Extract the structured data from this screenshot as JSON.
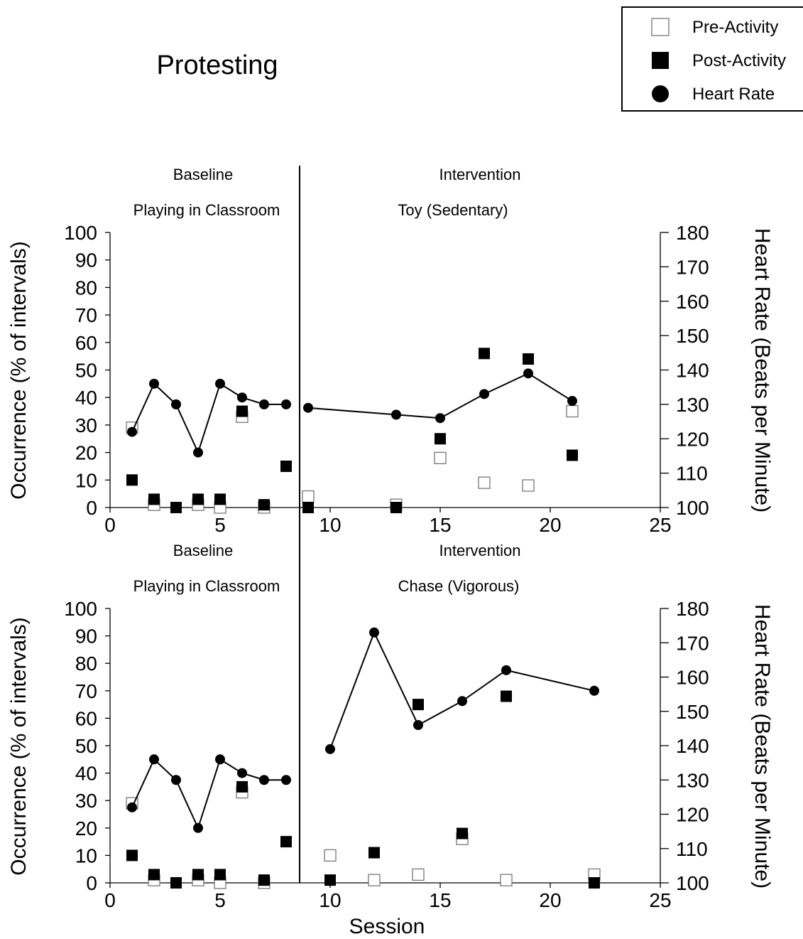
{
  "title": "Protesting",
  "legend": {
    "entries": [
      {
        "label": "Pre-Activity",
        "marker": "open-square"
      },
      {
        "label": "Post-Activity",
        "marker": "filled-square"
      },
      {
        "label": "Heart Rate",
        "marker": "filled-circle"
      }
    ]
  },
  "colors": {
    "ink": "#000000",
    "background": "#ffffff"
  },
  "chart_data": [
    {
      "type": "scatter",
      "phase_labels": {
        "left": "Baseline",
        "right": "Intervention"
      },
      "condition_labels": {
        "left": "Playing in Classroom",
        "right": "Toy (Sedentary)"
      },
      "phase_change_after_session": 8.5,
      "xlabel": "",
      "ylabel": "Occurrence (% of intervals)",
      "y2label": "Heart Rate (Beats per Minute)",
      "xlim": [
        0,
        25
      ],
      "ylim": [
        0,
        100
      ],
      "y2lim": [
        100,
        180
      ],
      "xticks": [
        "0",
        "5",
        "10",
        "15",
        "20",
        "25"
      ],
      "yticks": [
        "0",
        "10",
        "20",
        "30",
        "40",
        "50",
        "60",
        "70",
        "80",
        "90",
        "100"
      ],
      "y2ticks": [
        "100",
        "110",
        "120",
        "130",
        "140",
        "150",
        "160",
        "170",
        "180"
      ],
      "series": [
        {
          "name": "Pre-Activity",
          "axis": "left",
          "points": [
            [
              1,
              29
            ],
            [
              2,
              1
            ],
            [
              4,
              1
            ],
            [
              5,
              0
            ],
            [
              6,
              33
            ],
            [
              7,
              0
            ],
            [
              9,
              4
            ],
            [
              13,
              1
            ],
            [
              15,
              18
            ],
            [
              17,
              9
            ],
            [
              19,
              8
            ],
            [
              21,
              35
            ]
          ]
        },
        {
          "name": "Post-Activity",
          "axis": "left",
          "points": [
            [
              1,
              10
            ],
            [
              2,
              3
            ],
            [
              3,
              0
            ],
            [
              4,
              3
            ],
            [
              5,
              3
            ],
            [
              6,
              35
            ],
            [
              7,
              1
            ],
            [
              8,
              15
            ],
            [
              9,
              0
            ],
            [
              13,
              0
            ],
            [
              15,
              25
            ],
            [
              17,
              56
            ],
            [
              19,
              54
            ],
            [
              21,
              19
            ]
          ]
        },
        {
          "name": "Heart Rate",
          "axis": "right",
          "segments": [
            [
              [
                1,
                122
              ],
              [
                2,
                136
              ],
              [
                3,
                130
              ],
              [
                4,
                116
              ],
              [
                5,
                136
              ],
              [
                6,
                132
              ],
              [
                7,
                130
              ],
              [
                8,
                130
              ]
            ],
            [
              [
                9,
                129
              ],
              [
                13,
                127
              ],
              [
                15,
                126
              ],
              [
                17,
                133
              ],
              [
                19,
                139
              ],
              [
                21,
                131
              ]
            ]
          ]
        }
      ]
    },
    {
      "type": "scatter",
      "phase_labels": {
        "left": "Baseline",
        "right": "Intervention"
      },
      "condition_labels": {
        "left": "Playing in Classroom",
        "right": "Chase (Vigorous)"
      },
      "phase_change_after_session": 8.5,
      "xlabel": "Session",
      "ylabel": "Occurrence (% of intervals)",
      "y2label": "Heart Rate (Beats per Minute)",
      "xlim": [
        0,
        25
      ],
      "ylim": [
        0,
        100
      ],
      "y2lim": [
        100,
        180
      ],
      "xticks": [
        "0",
        "5",
        "10",
        "15",
        "20",
        "25"
      ],
      "yticks": [
        "0",
        "10",
        "20",
        "30",
        "40",
        "50",
        "60",
        "70",
        "80",
        "90",
        "100"
      ],
      "y2ticks": [
        "100",
        "110",
        "120",
        "130",
        "140",
        "150",
        "160",
        "170",
        "180"
      ],
      "series": [
        {
          "name": "Pre-Activity",
          "axis": "left",
          "points": [
            [
              1,
              29
            ],
            [
              2,
              1
            ],
            [
              4,
              1
            ],
            [
              5,
              0
            ],
            [
              6,
              33
            ],
            [
              7,
              0
            ],
            [
              10,
              10
            ],
            [
              12,
              1
            ],
            [
              14,
              3
            ],
            [
              16,
              16
            ],
            [
              18,
              1
            ],
            [
              22,
              3
            ]
          ]
        },
        {
          "name": "Post-Activity",
          "axis": "left",
          "points": [
            [
              1,
              10
            ],
            [
              2,
              3
            ],
            [
              3,
              0
            ],
            [
              4,
              3
            ],
            [
              5,
              3
            ],
            [
              6,
              35
            ],
            [
              7,
              1
            ],
            [
              8,
              15
            ],
            [
              10,
              1
            ],
            [
              12,
              11
            ],
            [
              14,
              65
            ],
            [
              16,
              18
            ],
            [
              18,
              68
            ],
            [
              22,
              0
            ]
          ]
        },
        {
          "name": "Heart Rate",
          "axis": "right",
          "segments": [
            [
              [
                1,
                122
              ],
              [
                2,
                136
              ],
              [
                3,
                130
              ],
              [
                4,
                116
              ],
              [
                5,
                136
              ],
              [
                6,
                132
              ],
              [
                7,
                130
              ],
              [
                8,
                130
              ]
            ],
            [
              [
                10,
                139
              ],
              [
                12,
                173
              ],
              [
                14,
                146
              ],
              [
                16,
                153
              ],
              [
                18,
                162
              ],
              [
                22,
                156
              ]
            ]
          ]
        }
      ]
    }
  ]
}
